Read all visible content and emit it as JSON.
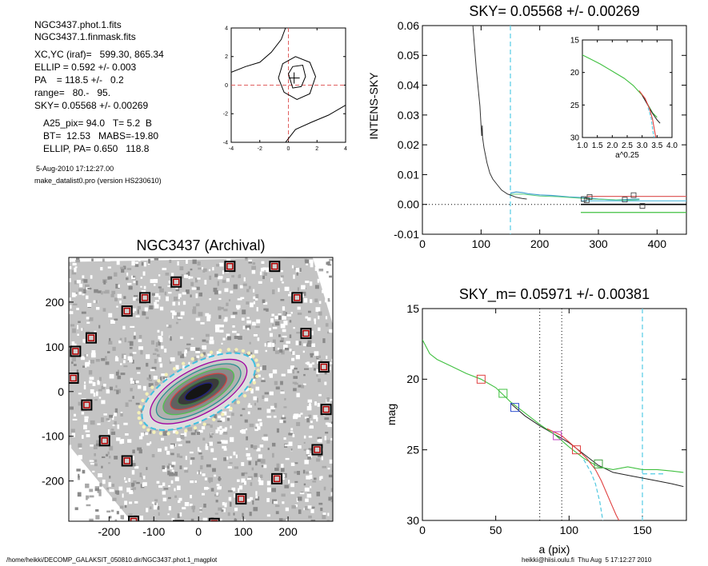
{
  "info": {
    "lines": [
      "NGC3437.phot.1.fits",
      "NGC3437.1.finmask.fits",
      "XC,YC (iraf)=   599.30, 865.34",
      "ELLIP = 0.592 +/- 0.003",
      "PA    = 118.5 +/-   0.2",
      "range=   80.-   95.",
      "SKY= 0.05568 +/- 0.00269",
      "A25_pix= 94.0   T= 5.2  B",
      "BT=  12.53   MABS=-19.80",
      "ELLIP, PA= 0.650   118.8"
    ],
    "small_lines": [
      "5-Aug-2010 17:12:27.00",
      "make_datalist0.pro (version HS230610)"
    ]
  },
  "footer": {
    "left": "/home/heikki/DECOMP_GALAKSIT_050810.dir/NGC3437.phot.1_magplot",
    "right": "heikki@hiisi.oulu.fi  Thu Aug  5 17:12:27 2010"
  },
  "chart_data": [
    {
      "type": "line",
      "panel": "centering-contours",
      "title": "",
      "xlabel": "",
      "ylabel": "",
      "xlim": [
        -4,
        4
      ],
      "ylim": [
        -4,
        4
      ],
      "xticks": [
        "-4",
        "-2",
        "0",
        "2",
        "4"
      ],
      "yticks": [
        "-4",
        "-2",
        "0",
        "2",
        "4"
      ],
      "crosshair": [
        0,
        0
      ],
      "center_mark": [
        0.4,
        0.5
      ],
      "contours": [
        [
          [
            -0.7,
            0.5
          ],
          [
            -0.4,
            1.5
          ],
          [
            0.5,
            2.0
          ],
          [
            1.5,
            1.6
          ],
          [
            1.9,
            0.6
          ],
          [
            1.5,
            -0.6
          ],
          [
            0.6,
            -1.0
          ],
          [
            -0.3,
            -0.5
          ],
          [
            -0.7,
            0.5
          ]
        ],
        [
          [
            0.0,
            0.8
          ],
          [
            0.3,
            1.3
          ],
          [
            1.0,
            1.4
          ],
          [
            1.2,
            0.6
          ],
          [
            0.9,
            -0.1
          ],
          [
            0.3,
            -0.2
          ],
          [
            0.0,
            0.8
          ]
        ],
        [
          [
            -4,
            0.9
          ],
          [
            -3,
            1.3
          ],
          [
            -2,
            1.6
          ],
          [
            -1.2,
            2.3
          ],
          [
            -0.5,
            3.2
          ],
          [
            -0.2,
            4
          ]
        ],
        [
          [
            -0.2,
            -4
          ],
          [
            0.5,
            -3.1
          ],
          [
            1.6,
            -2.6
          ],
          [
            2.8,
            -2.1
          ],
          [
            4,
            -1.4
          ]
        ]
      ]
    },
    {
      "type": "line",
      "panel": "sky-profile",
      "title": "SKY= 0.05568 +/- 0.00269",
      "xlabel": "",
      "ylabel": "INTENS-SKY",
      "xlim": [
        0,
        450
      ],
      "ylim": [
        -0.01,
        0.06
      ],
      "xticks": [
        "0",
        "100",
        "200",
        "300",
        "400"
      ],
      "yticks": [
        "-0.01",
        "0.00",
        "0.01",
        "0.02",
        "0.03",
        "0.04",
        "0.05",
        "0.06"
      ],
      "vline_x": 150,
      "profile": [
        [
          86,
          0.06
        ],
        [
          92,
          0.045
        ],
        [
          98,
          0.033
        ],
        [
          100,
          0.0265
        ],
        [
          101,
          0.023
        ],
        [
          102,
          0.0265
        ],
        [
          102.5,
          0.0225
        ],
        [
          105,
          0.019
        ],
        [
          110,
          0.014
        ],
        [
          115,
          0.0105
        ],
        [
          120,
          0.0085
        ],
        [
          128,
          0.0065
        ],
        [
          135,
          0.0048
        ],
        [
          145,
          0.0035
        ],
        [
          152,
          0.003
        ],
        [
          160,
          0.0024
        ],
        [
          170,
          0.002
        ],
        [
          178,
          0.0018
        ]
      ],
      "sky_curve": [
        [
          150,
          0.0038
        ],
        [
          160,
          0.0042
        ],
        [
          170,
          0.004
        ],
        [
          180,
          0.0036
        ],
        [
          200,
          0.0032
        ],
        [
          220,
          0.003
        ],
        [
          250,
          0.0025
        ],
        [
          280,
          0.0022
        ],
        [
          300,
          0.0018
        ],
        [
          330,
          0.0015
        ],
        [
          370,
          0.0018
        ]
      ],
      "sky_curve2": [
        [
          150,
          0.0034
        ],
        [
          170,
          0.0035
        ],
        [
          200,
          0.0028
        ],
        [
          230,
          0.0026
        ],
        [
          260,
          0.0022
        ],
        [
          290,
          0.0018
        ],
        [
          320,
          0.0016
        ],
        [
          350,
          0.0014
        ],
        [
          370,
          0.0016
        ]
      ],
      "markers": [
        [
          275,
          0.0018
        ],
        [
          285,
          0.0025
        ],
        [
          280,
          0.0014
        ],
        [
          345,
          0.0016
        ],
        [
          360,
          0.0031
        ],
        [
          375,
          -0.0005
        ]
      ],
      "levels": [
        {
          "y": 0.0027,
          "x0": 280,
          "x1": 450,
          "color": "#e06060"
        },
        {
          "y": 0.0,
          "x0": 270,
          "x1": 450,
          "color": "#000000"
        },
        {
          "y": -0.0027,
          "x0": 270,
          "x1": 450,
          "color": "#40c040"
        },
        {
          "y": 0.0012,
          "x0": 270,
          "x1": 450,
          "color": "#60c0e0"
        }
      ],
      "inset": {
        "xlabel": "a^0.25",
        "xlim": [
          1.0,
          4.0
        ],
        "ylim": [
          15,
          30
        ],
        "xticks": [
          "1.0",
          "1.5",
          "2.0",
          "2.5",
          "3.0",
          "3.5",
          "4.0"
        ],
        "yticks": [
          "15",
          "20",
          "25",
          "30"
        ],
        "green": [
          [
            1.0,
            17.3
          ],
          [
            1.3,
            18.0
          ],
          [
            1.6,
            18.7
          ],
          [
            2.0,
            19.8
          ],
          [
            2.4,
            20.9
          ],
          [
            2.7,
            22.0
          ],
          [
            3.0,
            23.5
          ],
          [
            3.2,
            25.0
          ],
          [
            3.35,
            26.2
          ],
          [
            3.5,
            26.9
          ]
        ],
        "red": [
          [
            2.9,
            22.8
          ],
          [
            3.1,
            24.0
          ],
          [
            3.25,
            25.6
          ],
          [
            3.35,
            27.2
          ],
          [
            3.42,
            29.0
          ],
          [
            3.46,
            30
          ]
        ],
        "black": [
          [
            3.0,
            23.5
          ],
          [
            3.2,
            25.1
          ],
          [
            3.35,
            26.3
          ],
          [
            3.5,
            27.3
          ],
          [
            3.6,
            27.8
          ]
        ],
        "cyan": [
          [
            3.2,
            25.4
          ],
          [
            3.3,
            27.0
          ],
          [
            3.36,
            29.0
          ],
          [
            3.4,
            30
          ]
        ]
      }
    },
    {
      "type": "scatter",
      "panel": "galaxy-image",
      "title": "NGC3437 (Archival)",
      "xlabel": "",
      "ylabel": "",
      "xlim": [
        -290,
        300
      ],
      "ylim": [
        -290,
        300
      ],
      "xticks": [
        "-200",
        "-100",
        "0",
        "100",
        "200"
      ],
      "yticks": [
        "-200",
        "-100",
        "0",
        "100",
        "200"
      ],
      "star_masks": [
        [
          -50,
          245
        ],
        [
          70,
          280
        ],
        [
          170,
          280
        ],
        [
          -120,
          210
        ],
        [
          -160,
          180
        ],
        [
          220,
          210
        ],
        [
          -240,
          120
        ],
        [
          -275,
          90
        ],
        [
          240,
          130
        ],
        [
          -280,
          30
        ],
        [
          280,
          55
        ],
        [
          -250,
          -30
        ],
        [
          -210,
          -110
        ],
        [
          285,
          -40
        ],
        [
          265,
          -130
        ],
        [
          -160,
          -155
        ],
        [
          175,
          -195
        ],
        [
          95,
          -240
        ],
        [
          -145,
          -290
        ],
        [
          -45,
          -300
        ],
        [
          35,
          -295
        ]
      ],
      "isophotes": [
        {
          "a": 140,
          "b": 62,
          "color": "#40c0e0",
          "dashed": true
        },
        {
          "a": 120,
          "b": 50,
          "color": "#a000a0",
          "dashed": false
        },
        {
          "a": 105,
          "b": 42,
          "color": "#2a9090",
          "dashed": false
        },
        {
          "a": 88,
          "b": 34,
          "color": "#50c050",
          "dashed": false
        },
        {
          "a": 70,
          "b": 26,
          "color": "#d04040",
          "dashed": false
        },
        {
          "a": 52,
          "b": 19,
          "color": "#408040",
          "dashed": false
        },
        {
          "a": 34,
          "b": 12,
          "color": "#202080",
          "dashed": false
        }
      ],
      "pa_deg": 28.5
    },
    {
      "type": "line",
      "panel": "mag-profile",
      "title": "SKY_m=  0.05971 +/- 0.00381",
      "xlabel": "a (pix)",
      "ylabel": "mag",
      "xlim": [
        0,
        180
      ],
      "ylim": [
        15,
        30
      ],
      "xticks": [
        "0",
        "50",
        "100",
        "150"
      ],
      "yticks": [
        "15",
        "20",
        "25",
        "30"
      ],
      "vlines_dotted": [
        80,
        95
      ],
      "vline_dashed": 150,
      "green": [
        [
          0,
          17.2
        ],
        [
          5,
          18.2
        ],
        [
          10,
          18.6
        ],
        [
          20,
          19.1
        ],
        [
          30,
          19.6
        ],
        [
          40,
          20.0
        ],
        [
          50,
          20.6
        ],
        [
          60,
          21.6
        ],
        [
          70,
          22.4
        ],
        [
          80,
          23.2
        ],
        [
          90,
          23.9
        ],
        [
          100,
          24.8
        ],
        [
          110,
          25.6
        ],
        [
          120,
          26.2
        ],
        [
          130,
          26.4
        ],
        [
          140,
          26.2
        ],
        [
          150,
          26.4
        ],
        [
          160,
          26.4
        ],
        [
          170,
          26.5
        ],
        [
          178,
          26.6
        ]
      ],
      "black": [
        [
          60,
          21.7
        ],
        [
          70,
          22.6
        ],
        [
          80,
          23.3
        ],
        [
          90,
          23.9
        ],
        [
          100,
          24.5
        ],
        [
          110,
          25.3
        ],
        [
          120,
          26.1
        ],
        [
          130,
          26.6
        ],
        [
          140,
          26.8
        ],
        [
          150,
          27.0
        ],
        [
          160,
          27.2
        ],
        [
          170,
          27.4
        ],
        [
          178,
          27.6
        ]
      ],
      "red": [
        [
          85,
          23.5
        ],
        [
          95,
          24.0
        ],
        [
          105,
          24.9
        ],
        [
          112,
          25.6
        ],
        [
          118,
          26.4
        ],
        [
          122,
          27.2
        ],
        [
          127,
          28.4
        ],
        [
          132,
          29.6
        ],
        [
          134,
          30
        ]
      ],
      "cyan": [
        [
          110,
          25.7
        ],
        [
          115,
          26.6
        ],
        [
          118,
          27.4
        ],
        [
          121,
          28.7
        ],
        [
          123,
          30
        ]
      ],
      "cyan_flat": [
        [
          150,
          26.7
        ],
        [
          165,
          26.7
        ]
      ],
      "markers": [
        {
          "x": 40,
          "y": 20.0,
          "color": "#e04040"
        },
        {
          "x": 55,
          "y": 21.0,
          "color": "#40c040"
        },
        {
          "x": 63,
          "y": 22.0,
          "color": "#3050d0"
        },
        {
          "x": 92,
          "y": 24.0,
          "color": "#c040c0"
        },
        {
          "x": 105,
          "y": 25.0,
          "color": "#e04040"
        },
        {
          "x": 120,
          "y": 26.0,
          "color": "#40a040"
        }
      ]
    }
  ]
}
